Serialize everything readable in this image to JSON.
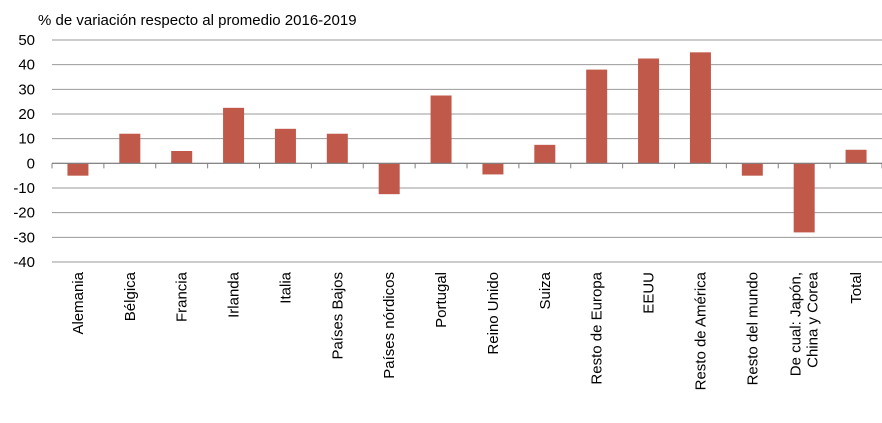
{
  "chart_data": {
    "type": "bar",
    "title": "% de variación respecto al promedio 2016-2019",
    "xlabel": "",
    "ylabel": "",
    "ylim": [
      -40,
      50
    ],
    "yticks": [
      "50",
      "40",
      "30",
      "20",
      "10",
      "0",
      "-10",
      "-20",
      "-30",
      "-40"
    ],
    "grid": true,
    "bar_color": "#c0594a",
    "categories": [
      "Alemania",
      "Bélgica",
      "Francia",
      "Irlanda",
      "Italia",
      "Países Bajos",
      "Países nórdicos",
      "Portugal",
      "Reino Unido",
      "Suiza",
      "Resto de Europa",
      "EEUU",
      "Resto de América",
      "Resto del mundo",
      "De cual: Japón,\nChina y Corea",
      "Total"
    ],
    "values": [
      -5,
      12,
      5,
      22.5,
      14,
      12,
      -12.5,
      27.5,
      -4.5,
      7.5,
      38,
      42.5,
      45,
      -5,
      -28,
      5.5
    ]
  }
}
